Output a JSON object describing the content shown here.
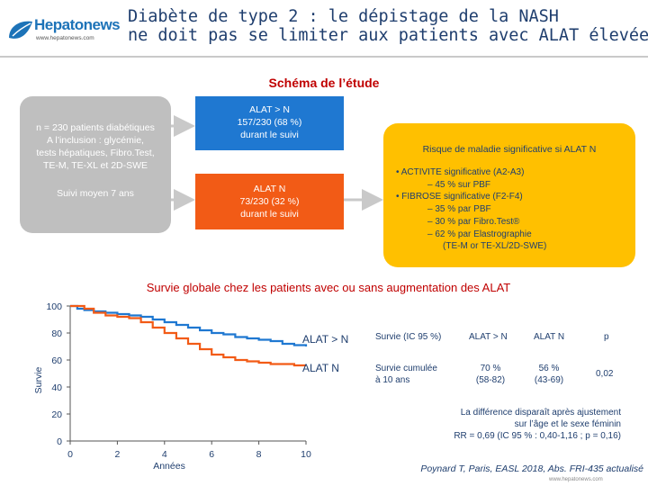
{
  "header": {
    "logo_name": "Hepatonews",
    "logo_url": "www.hepatonews.com",
    "title_line1": "Diabète de type 2 : le dépistage de la NASH",
    "title_line2": "ne doit pas se limiter aux patients avec ALAT élevées",
    "brand_color": "#1d73b8",
    "title_color": "#1f3e6e"
  },
  "study": {
    "title": "Schéma de l’étude",
    "gray_box": {
      "line1": "n = 230 patients diabétiques",
      "line2": "A l’inclusion : glycémie,",
      "line3": "tests hépatiques, Fibro.Test,",
      "line4": "TE-M, TE-XL et 2D-SWE",
      "followup": "Suivi moyen 7 ans",
      "color": "#bfbfbf"
    },
    "blue_box": {
      "line1": "ALAT > N",
      "line2": "157/230 (68 %)",
      "line3": "durant le suivi",
      "color": "#1f78d1"
    },
    "orange_box": {
      "line1": "ALAT N",
      "line2": "73/230 (32 %)",
      "line3": "durant le suivi",
      "color": "#f25b16"
    },
    "yellow_box": {
      "title": "Risque de maladie significative si ALAT N",
      "item1": "•  ACTIVITE significative (A2-A3)",
      "item1_sub": "–  45 % sur PBF",
      "item2": "•  FIBROSE significative (F2-F4)",
      "item2_sub1": "–  35 % par PBF",
      "item2_sub2": "–  30 % par Fibro.Test®",
      "item2_sub3": "–  62 % par Elastrographie",
      "item2_sub3b": "(TE-M or TE-XL/2D-SWE)",
      "color": "#ffc000"
    }
  },
  "chart_data": {
    "type": "line",
    "title": "Survie globale chez les patients avec ou sans augmentation des ALAT",
    "xlabel": "Années",
    "ylabel": "Survie",
    "xlim": [
      0,
      10
    ],
    "ylim": [
      0,
      100
    ],
    "xticks": [
      0,
      2,
      4,
      6,
      8,
      10
    ],
    "yticks": [
      0,
      20,
      40,
      60,
      80,
      100
    ],
    "grid": false,
    "series": [
      {
        "name": "ALAT > N",
        "color": "#1f78d1",
        "x": [
          0,
          0.3,
          0.6,
          1.0,
          1.5,
          2.0,
          2.5,
          3.0,
          3.5,
          4.0,
          4.5,
          5.0,
          5.5,
          6.0,
          6.5,
          7.0,
          7.5,
          8.0,
          8.5,
          9.0,
          9.5,
          10.0
        ],
        "y": [
          100,
          98,
          97,
          96,
          95,
          94,
          93,
          92,
          90,
          88,
          86,
          84,
          82,
          80,
          79,
          77,
          76,
          75,
          74,
          72,
          71,
          70
        ]
      },
      {
        "name": "ALAT N",
        "color": "#f25b16",
        "x": [
          0,
          0.3,
          0.6,
          1.0,
          1.5,
          2.0,
          2.5,
          3.0,
          3.5,
          4.0,
          4.5,
          5.0,
          5.5,
          6.0,
          6.5,
          7.0,
          7.5,
          8.0,
          8.5,
          9.0,
          9.5,
          10.0
        ],
        "y": [
          100,
          100,
          98,
          95,
          93,
          92,
          91,
          88,
          84,
          80,
          76,
          72,
          68,
          64,
          62,
          60,
          59,
          58,
          57,
          57,
          56,
          56
        ]
      }
    ]
  },
  "stats": {
    "col_survie": "Survie (IC 95 %)",
    "col_alat_high": "ALAT > N",
    "col_alat_n": "ALAT N",
    "col_p": "p",
    "row_label_1": "Survie cumulée",
    "row_label_2": "à 10 ans",
    "high_value": "70 %",
    "high_ci": "(58-82)",
    "n_value": "56 %",
    "n_ci": "(43-69)",
    "p_value": "0,02"
  },
  "note": {
    "line1": "La différence disparaît après ajustement",
    "line2": "sur l’âge et le sexe féminin",
    "line3": "RR = 0,69 (IC 95 % : 0,40-1,16 ; p = 0,16)"
  },
  "reference": "Poynard T, Paris, EASL 2018, Abs. FRI-435 actualisé",
  "footer_url": "www.hepatonews.com"
}
